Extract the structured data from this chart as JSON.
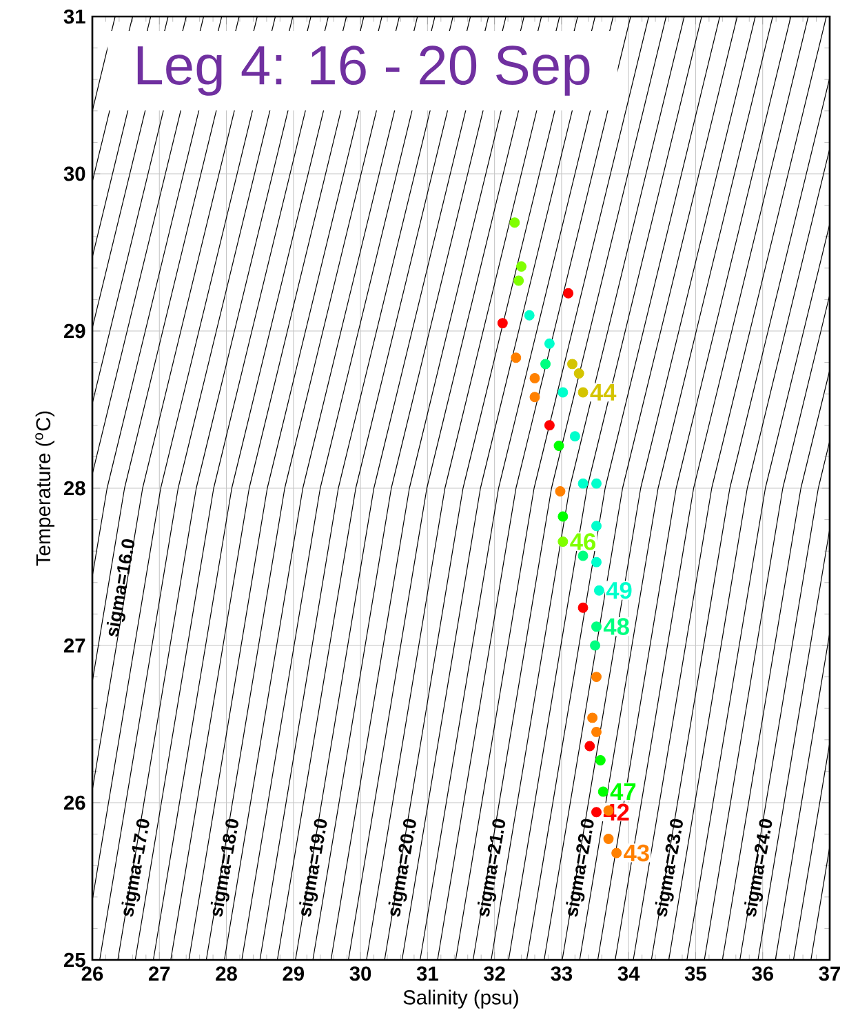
{
  "chart_data": {
    "type": "scatter",
    "title": "Leg 4: 16 - 20 Sep",
    "xlabel": "Salinity (psu)",
    "ylabel": "Temperature ($^{o}$C)",
    "xlim": [
      26,
      37
    ],
    "ylim": [
      25,
      31
    ],
    "xticks": [
      26,
      27,
      28,
      29,
      30,
      31,
      32,
      33,
      34,
      35,
      36,
      37
    ],
    "yticks": [
      25,
      26,
      27,
      28,
      29,
      30,
      31
    ],
    "grid": true,
    "annotations": [
      {
        "text": "sigma=16.0",
        "x": 26.24,
        "y": 27.38
      },
      {
        "text": "sigma=17.0",
        "x": 26.86,
        "y": 25.57
      },
      {
        "text": "sigma=18.0",
        "x": 28.19,
        "y": 25.57
      },
      {
        "text": "sigma=19.0",
        "x": 29.51,
        "y": 25.57
      },
      {
        "text": "sigma=20.0",
        "x": 30.84,
        "y": 25.57
      },
      {
        "text": "sigma=21.0",
        "x": 32.17,
        "y": 25.57
      },
      {
        "text": "sigma=22.0",
        "x": 33.49,
        "y": 25.57
      },
      {
        "text": "sigma=23.0",
        "x": 34.82,
        "y": 25.57
      },
      {
        "text": "sigma=24.0",
        "x": 36.15,
        "y": 25.57
      }
    ],
    "series": [
      {
        "type": "line",
        "color": "#000000",
        "x": [
          26,
          26.34
        ],
        "values": [
          30.4,
          31
        ]
      },
      {
        "type": "line",
        "color": "#000000",
        "x": [
          26,
          26.6
        ],
        "values": [
          29.95,
          31
        ]
      },
      {
        "type": "line",
        "color": "#000000",
        "x": [
          26,
          26.87
        ],
        "values": [
          29.47,
          31
        ]
      },
      {
        "type": "line",
        "color": "#000000",
        "x": [
          26,
          27.13
        ],
        "values": [
          29.02,
          31
        ]
      },
      {
        "type": "line",
        "color": "#000000",
        "x": [
          26,
          27.4
        ],
        "values": [
          28.54,
          31
        ]
      },
      {
        "type": "line",
        "color": "#000000",
        "x": [
          26,
          27.66
        ],
        "values": [
          28.09,
          31
        ]
      },
      {
        "type": "line",
        "color": "#000000",
        "x": [
          26,
          26.22,
          27.93
        ],
        "values": [
          27.44,
          28,
          31
        ]
      },
      {
        "type": "line",
        "color": "#000000",
        "x": [
          26,
          26.48,
          28.19
        ],
        "values": [
          26.77,
          28,
          31
        ]
      },
      {
        "type": "line",
        "color": "#000000",
        "x": [
          26,
          26.75,
          28.46
        ],
        "values": [
          26.08,
          28,
          31
        ]
      },
      {
        "type": "line",
        "color": "#000000",
        "x": [
          26,
          27.02,
          28.73
        ],
        "values": [
          25.38,
          28,
          31
        ]
      },
      {
        "type": "line",
        "color": "#000000",
        "x": [
          26.11,
          27.28,
          28.99
        ],
        "values": [
          25,
          28,
          31
        ]
      },
      {
        "type": "line",
        "color": "#000000",
        "x": [
          26.38,
          27.55,
          29.26
        ],
        "values": [
          25,
          28,
          31
        ]
      },
      {
        "type": "line",
        "color": "#000000",
        "x": [
          26.64,
          27.81,
          29.52
        ],
        "values": [
          25,
          28,
          31
        ]
      },
      {
        "type": "line",
        "color": "#000000",
        "x": [
          26.91,
          28.08,
          29.79
        ],
        "values": [
          25,
          28,
          31
        ]
      },
      {
        "type": "line",
        "color": "#000000",
        "x": [
          27.17,
          28.34,
          30.05
        ],
        "values": [
          25,
          28,
          31
        ]
      },
      {
        "type": "line",
        "color": "#000000",
        "x": [
          27.44,
          28.61,
          30.32
        ],
        "values": [
          25,
          28,
          31
        ]
      },
      {
        "type": "line",
        "color": "#000000",
        "x": [
          27.7,
          28.87,
          30.58
        ],
        "values": [
          25,
          28,
          31
        ]
      },
      {
        "type": "line",
        "color": "#000000",
        "x": [
          27.97,
          29.14,
          30.85
        ],
        "values": [
          25,
          28,
          31
        ]
      },
      {
        "type": "line",
        "color": "#000000",
        "x": [
          28.23,
          29.4,
          31.11
        ],
        "values": [
          25,
          28,
          31
        ]
      },
      {
        "type": "line",
        "color": "#000000",
        "x": [
          28.5,
          29.67,
          31.38
        ],
        "values": [
          25,
          28,
          31
        ]
      },
      {
        "type": "line",
        "color": "#000000",
        "x": [
          28.76,
          29.93,
          31.64
        ],
        "values": [
          25,
          28,
          31
        ]
      },
      {
        "type": "line",
        "color": "#000000",
        "x": [
          29.03,
          30.2,
          31.91
        ],
        "values": [
          25,
          28,
          31
        ]
      },
      {
        "type": "line",
        "color": "#000000",
        "x": [
          29.29,
          30.46,
          32.17
        ],
        "values": [
          25,
          28,
          31
        ]
      },
      {
        "type": "line",
        "color": "#000000",
        "x": [
          29.56,
          30.73,
          32.44
        ],
        "values": [
          25,
          28,
          31
        ]
      },
      {
        "type": "line",
        "color": "#000000",
        "x": [
          29.82,
          30.99,
          32.7
        ],
        "values": [
          25,
          28,
          31
        ]
      },
      {
        "type": "line",
        "color": "#000000",
        "x": [
          30.09,
          31.26,
          32.97
        ],
        "values": [
          25,
          28,
          31
        ]
      },
      {
        "type": "line",
        "color": "#000000",
        "x": [
          30.36,
          31.53,
          33.24
        ],
        "values": [
          25,
          28,
          31
        ]
      },
      {
        "type": "line",
        "color": "#000000",
        "x": [
          30.62,
          31.79,
          33.5
        ],
        "values": [
          25,
          28,
          31
        ]
      },
      {
        "type": "line",
        "color": "#000000",
        "x": [
          30.89,
          32.06,
          33.77
        ],
        "values": [
          25,
          28,
          31
        ]
      },
      {
        "type": "line",
        "color": "#000000",
        "x": [
          31.15,
          32.32,
          34.03
        ],
        "values": [
          25,
          28,
          31
        ]
      },
      {
        "type": "line",
        "color": "#000000",
        "x": [
          31.42,
          32.59,
          34.3
        ],
        "values": [
          25,
          28,
          31
        ]
      },
      {
        "type": "line",
        "color": "#000000",
        "x": [
          31.68,
          32.85,
          34.56
        ],
        "values": [
          25,
          28,
          31
        ]
      },
      {
        "type": "line",
        "color": "#000000",
        "x": [
          31.95,
          33.12,
          34.83
        ],
        "values": [
          25,
          28,
          31
        ]
      },
      {
        "type": "line",
        "color": "#000000",
        "x": [
          32.21,
          33.38,
          35.09
        ],
        "values": [
          25,
          28,
          31
        ]
      },
      {
        "type": "line",
        "color": "#000000",
        "x": [
          32.48,
          33.65,
          35.36
        ],
        "values": [
          25,
          28,
          31
        ]
      },
      {
        "type": "line",
        "color": "#000000",
        "x": [
          32.74,
          33.91,
          35.62
        ],
        "values": [
          25,
          28,
          31
        ]
      },
      {
        "type": "line",
        "color": "#000000",
        "x": [
          33.01,
          34.18,
          35.89
        ],
        "values": [
          25,
          28,
          31
        ]
      },
      {
        "type": "line",
        "color": "#000000",
        "x": [
          33.27,
          34.44,
          36.15
        ],
        "values": [
          25,
          28,
          31
        ]
      },
      {
        "type": "line",
        "color": "#000000",
        "x": [
          33.54,
          34.71,
          36.42
        ],
        "values": [
          25,
          28,
          31
        ]
      },
      {
        "type": "line",
        "color": "#000000",
        "x": [
          33.8,
          34.97,
          36.68
        ],
        "values": [
          25,
          28,
          31
        ]
      },
      {
        "type": "line",
        "color": "#000000",
        "x": [
          34.07,
          35.24,
          36.95
        ],
        "values": [
          25,
          28,
          31
        ]
      },
      {
        "type": "line",
        "color": "#000000",
        "x": [
          34.34,
          35.51,
          37
        ],
        "values": [
          25,
          28,
          30.61
        ]
      },
      {
        "type": "line",
        "color": "#000000",
        "x": [
          34.6,
          35.77,
          37
        ],
        "values": [
          25,
          28,
          30.16
        ]
      },
      {
        "type": "line",
        "color": "#000000",
        "x": [
          34.87,
          36.04,
          37
        ],
        "values": [
          25,
          28,
          29.68
        ]
      },
      {
        "type": "line",
        "color": "#000000",
        "x": [
          35.13,
          36.3,
          37
        ],
        "values": [
          25,
          28,
          29.23
        ]
      },
      {
        "type": "line",
        "color": "#000000",
        "x": [
          35.4,
          36.57,
          37
        ],
        "values": [
          25,
          28,
          28.75
        ]
      },
      {
        "type": "line",
        "color": "#000000",
        "x": [
          35.66,
          36.83,
          37
        ],
        "values": [
          25,
          28,
          28.3
        ]
      },
      {
        "type": "line",
        "color": "#000000",
        "x": [
          35.93,
          37
        ],
        "values": [
          25,
          27.74
        ]
      },
      {
        "type": "line",
        "color": "#000000",
        "x": [
          36.19,
          37
        ],
        "values": [
          25,
          27.08
        ]
      },
      {
        "type": "line",
        "color": "#000000",
        "x": [
          36.46,
          37
        ],
        "values": [
          25,
          26.38
        ]
      },
      {
        "type": "line",
        "color": "#000000",
        "x": [
          36.72,
          37
        ],
        "values": [
          25,
          25.72
        ]
      },
      {
        "name": "42",
        "color": "#ff0000",
        "x": [
          33.1,
          32.82,
          32.12,
          33.32,
          33.42,
          33.52
        ],
        "values": [
          29.24,
          28.4,
          29.05,
          27.24,
          26.36,
          25.94
        ]
      },
      {
        "name": "43",
        "color": "#ff8000",
        "x": [
          32.6,
          32.6,
          32.32,
          32.98,
          33.52,
          33.46,
          33.52,
          33.7,
          33.7,
          33.82
        ],
        "values": [
          28.7,
          28.58,
          28.83,
          27.98,
          26.8,
          26.54,
          26.45,
          25.95,
          25.77,
          25.68
        ]
      },
      {
        "name": "44",
        "color": "#d4c400",
        "x": [
          33.16,
          33.32,
          33.26
        ],
        "values": [
          28.79,
          28.61,
          28.73
        ]
      },
      {
        "name": "46",
        "color": "#80ff00",
        "x": [
          32.3,
          32.4,
          32.36,
          33.02
        ],
        "values": [
          29.69,
          29.41,
          29.32,
          27.66
        ]
      },
      {
        "name": "47",
        "color": "#00ff00",
        "x": [
          32.96,
          33.58,
          33.62,
          33.02
        ],
        "values": [
          28.27,
          26.27,
          26.07,
          27.82
        ]
      },
      {
        "name": "48",
        "color": "#00ff80",
        "x": [
          32.76,
          33.52,
          33.5,
          33.32
        ],
        "values": [
          28.79,
          27.12,
          27.0,
          27.57
        ]
      },
      {
        "name": "49",
        "color": "#00ffcc",
        "x": [
          32.82,
          33.02,
          33.2,
          33.52,
          33.52,
          33.56,
          33.32,
          33.52,
          32.52
        ],
        "values": [
          28.92,
          28.61,
          28.33,
          27.76,
          27.53,
          27.35,
          28.03,
          28.03,
          29.1
        ]
      }
    ]
  }
}
